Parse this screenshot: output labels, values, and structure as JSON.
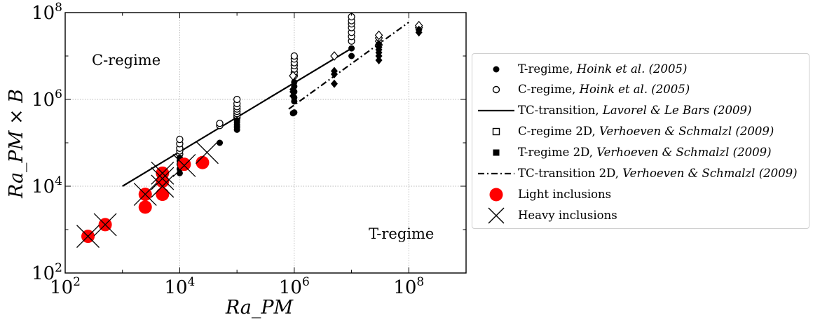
{
  "chart_data": {
    "type": "scatter",
    "xlabel": "Ra_PM",
    "ylabel": "Ra_PM × B",
    "xscale": "log",
    "yscale": "log",
    "xlim": [
      100,
      1000000000
    ],
    "ylim": [
      100,
      100000000
    ],
    "x_ticks": [
      100,
      10000,
      1000000,
      100000000
    ],
    "y_ticks": [
      100,
      10000,
      1000000,
      100000000
    ],
    "x_tick_labels": [
      {
        "base": "10",
        "exp": "2"
      },
      {
        "base": "10",
        "exp": "4"
      },
      {
        "base": "10",
        "exp": "6"
      },
      {
        "base": "10",
        "exp": "8"
      }
    ],
    "y_tick_labels": [
      {
        "base": "10",
        "exp": "2"
      },
      {
        "base": "10",
        "exp": "4"
      },
      {
        "base": "10",
        "exp": "6"
      },
      {
        "base": "10",
        "exp": "8"
      }
    ],
    "grid": true,
    "legend_position": "right, outside the plot",
    "annotations": [
      {
        "text": "C-regime",
        "x": 700,
        "y": 8000000
      },
      {
        "text": "T-regime",
        "x": 15000000,
        "y": 2500
      }
    ],
    "series": [
      {
        "name": "T-regime, ",
        "name_cite": "Hoink et al. (2005)",
        "marker": "filled-circle",
        "points": [
          [
            10000,
            20000
          ],
          [
            10000,
            25000
          ],
          [
            10000,
            32000
          ],
          [
            10000,
            38000
          ],
          [
            10000,
            45000
          ],
          [
            50000,
            100000
          ],
          [
            100000,
            200000
          ],
          [
            100000,
            230000
          ],
          [
            100000,
            260000
          ],
          [
            100000,
            300000
          ],
          [
            100000,
            330000
          ],
          [
            1000000,
            500000
          ],
          [
            950000,
            480000
          ],
          [
            1000000,
            900000
          ],
          [
            1000000,
            1100000
          ],
          [
            1000000,
            1500000
          ],
          [
            1000000,
            2000000
          ],
          [
            1000000,
            2500000
          ],
          [
            10000000,
            10000000
          ],
          [
            10000000,
            15000000
          ]
        ]
      },
      {
        "name": "C-regime, ",
        "name_cite": "Hoink et al. (2005)",
        "marker": "open-circle",
        "points": [
          [
            10000,
            55000
          ],
          [
            10000,
            65000
          ],
          [
            10000,
            75000
          ],
          [
            10000,
            95000
          ],
          [
            10000,
            120000
          ],
          [
            50000,
            250000
          ],
          [
            50000,
            280000
          ],
          [
            100000,
            380000
          ],
          [
            100000,
            420000
          ],
          [
            100000,
            470000
          ],
          [
            100000,
            530000
          ],
          [
            100000,
            600000
          ],
          [
            100000,
            680000
          ],
          [
            100000,
            800000
          ],
          [
            100000,
            1000000
          ],
          [
            1000000,
            3500000
          ],
          [
            1000000,
            4200000
          ],
          [
            1000000,
            5000000
          ],
          [
            1000000,
            6000000
          ],
          [
            1000000,
            7000000
          ],
          [
            1000000,
            8500000
          ],
          [
            1000000,
            10000000
          ],
          [
            10000000,
            22000000
          ],
          [
            10000000,
            28000000
          ],
          [
            10000000,
            35000000
          ],
          [
            10000000,
            45000000
          ],
          [
            10000000,
            55000000
          ],
          [
            10000000,
            65000000
          ],
          [
            10000000,
            80000000
          ]
        ]
      },
      {
        "name": "TC-transition, ",
        "name_cite": "Lavorel & Le Bars (2009)",
        "marker": "solid-line",
        "line": [
          [
            1000,
            10000
          ],
          [
            10000000,
            15000000
          ]
        ]
      },
      {
        "name": "C-regime 2D, ",
        "name_cite": "Verhoeven & Schmalzl (2009)",
        "marker": "open-diamond",
        "points": [
          [
            950000,
            3500000
          ],
          [
            5000000,
            10000000
          ],
          [
            30000000,
            18000000
          ],
          [
            30000000,
            22000000
          ],
          [
            30000000,
            26000000
          ],
          [
            30000000,
            30000000
          ],
          [
            150000000,
            45000000
          ],
          [
            150000000,
            50000000
          ]
        ]
      },
      {
        "name": "T-regime 2D, ",
        "name_cite": "Verhoeven & Schmalzl (2009)",
        "marker": "filled-square-diamond",
        "points": [
          [
            950000,
            1200000
          ],
          [
            950000,
            1500000
          ],
          [
            950000,
            1700000
          ],
          [
            5000000,
            2300000
          ],
          [
            5000000,
            3800000
          ],
          [
            5000000,
            4500000
          ],
          [
            30000000,
            8000000
          ],
          [
            30000000,
            10000000
          ],
          [
            30000000,
            12000000
          ],
          [
            30000000,
            14000000
          ],
          [
            30000000,
            16000000
          ],
          [
            30000000,
            19000000
          ],
          [
            150000000,
            35000000
          ],
          [
            150000000,
            40000000
          ]
        ]
      },
      {
        "name": "TC-transition 2D, ",
        "name_cite": "Verhoeven & Schmalzl (2009)",
        "marker": "dash-dot-line",
        "line": [
          [
            800000,
            600000
          ],
          [
            100000000,
            60000000
          ]
        ]
      },
      {
        "name": "Light inclusions",
        "name_cite": "",
        "marker": "red-circle",
        "color": "#ff0000",
        "points": [
          [
            250,
            700
          ],
          [
            500,
            1300
          ],
          [
            2500,
            3300
          ],
          [
            2500,
            6500
          ],
          [
            5000,
            6500
          ],
          [
            5000,
            13000
          ],
          [
            5000,
            20000
          ],
          [
            12000,
            32000
          ],
          [
            25000,
            35000
          ]
        ]
      },
      {
        "name": "Heavy inclusions",
        "name_cite": "",
        "marker": "x-cross",
        "points": [
          [
            250,
            700
          ],
          [
            500,
            1300
          ],
          [
            2500,
            6500
          ],
          [
            5000,
            10000
          ],
          [
            5000,
            15000
          ],
          [
            5000,
            20000
          ],
          [
            12000,
            30000
          ],
          [
            30000,
            60000
          ]
        ]
      }
    ]
  }
}
